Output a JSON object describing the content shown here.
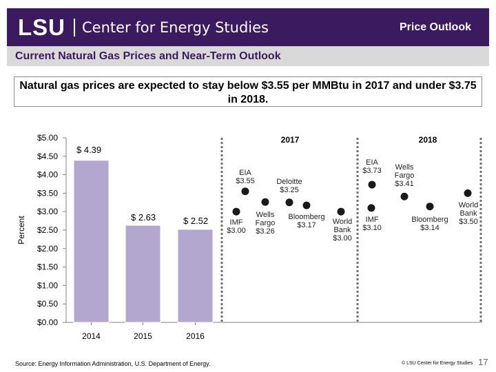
{
  "header": {
    "logo_text": "LSU",
    "center_name": "Center for Energy Studies",
    "title": "Price Outlook"
  },
  "subtitle": "Current Natural Gas Prices and Near-Term Outlook",
  "callout": "Natural gas prices are expected to stay below $3.55 per MMBtu in 2017 and under $3.75 in 2018.",
  "source": "Source: Energy Information Administration, U.S. Department of Energy.",
  "copyright": "© LSU Center for Energy Studies",
  "page_number": "17",
  "colors": {
    "header_bg": "#3c1a5f",
    "bar": "#b4a7cf",
    "marker": "#1a1a1a"
  },
  "chart_data": {
    "type": "bar",
    "ylabel": "Percent",
    "ylim": [
      0,
      5
    ],
    "yticks": [
      "$0.00",
      "$0.50",
      "$1.00",
      "$1.50",
      "$2.00",
      "$2.50",
      "$3.00",
      "$3.50",
      "$4.00",
      "$4.50",
      "$5.00"
    ],
    "grid": false,
    "bars": [
      {
        "category": "2014",
        "value": 4.39,
        "label": "$ 4.39"
      },
      {
        "category": "2015",
        "value": 2.63,
        "label": "$ 2.63"
      },
      {
        "category": "2016",
        "value": 2.52,
        "label": "$ 2.52"
      }
    ],
    "period_labels": [
      "2017",
      "2018"
    ],
    "forecasts": [
      {
        "year": "2017",
        "source": "IMF",
        "value": 3.0,
        "label_lines": [
          "IMF",
          "$3.00"
        ]
      },
      {
        "year": "2017",
        "source": "EIA",
        "value": 3.55,
        "label_lines": [
          "EIA",
          "$3.55"
        ]
      },
      {
        "year": "2017",
        "source": "Wells Fargo",
        "value": 3.26,
        "label_lines": [
          "Wells",
          "Fargo",
          "$3.26"
        ]
      },
      {
        "year": "2017",
        "source": "Deloitte",
        "value": 3.25,
        "label_lines": [
          "Deloitte",
          "$3.25"
        ]
      },
      {
        "year": "2017",
        "source": "Bloomberg",
        "value": 3.17,
        "label_lines": [
          "Bloomberg",
          "$3.17"
        ]
      },
      {
        "year": "2017",
        "source": "World Bank",
        "value": 3.0,
        "label_lines": [
          "World",
          "Bank",
          "$3.00"
        ]
      },
      {
        "year": "2018",
        "source": "IMF",
        "value": 3.1,
        "label_lines": [
          "IMF",
          "$3.10"
        ]
      },
      {
        "year": "2018",
        "source": "EIA",
        "value": 3.73,
        "label_lines": [
          "EIA",
          "$3.73"
        ]
      },
      {
        "year": "2018",
        "source": "Wells Fargo",
        "value": 3.41,
        "label_lines": [
          "Wells",
          "Fargo",
          "$3.41"
        ]
      },
      {
        "year": "2018",
        "source": "Bloomberg",
        "value": 3.14,
        "label_lines": [
          "Bloomberg",
          "$3.14"
        ]
      },
      {
        "year": "2018",
        "source": "World Bank",
        "value": 3.5,
        "label_lines": [
          "World",
          "Bank",
          "$3.50"
        ]
      }
    ]
  }
}
